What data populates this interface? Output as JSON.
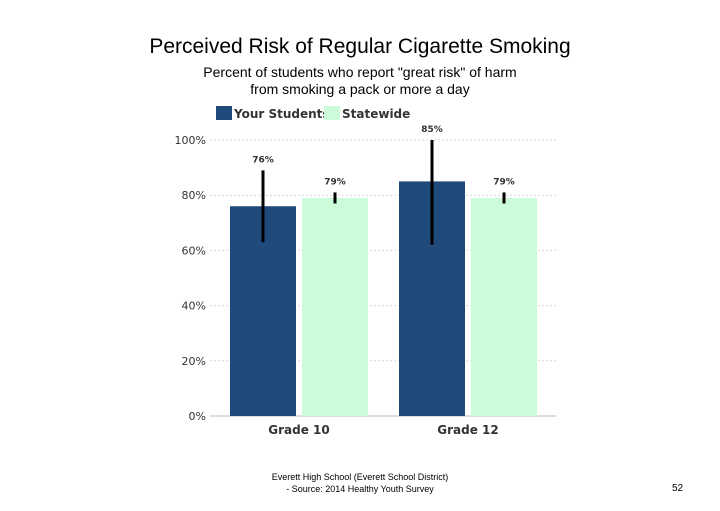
{
  "page": {
    "footer_line1": "Everett High School (Everett School District)",
    "footer_line2": "- Source: 2014 Healthy Youth Survey",
    "page_number": "52"
  },
  "chart_data": {
    "type": "bar",
    "title": "Perceived Risk of Regular Cigarette Smoking",
    "subtitle_line1": "Percent of students who report \"great risk\" of harm",
    "subtitle_line2": "from smoking a pack or more a day",
    "xlabel": "",
    "ylabel": "",
    "categories": [
      "Grade 10",
      "Grade 12"
    ],
    "ylim": [
      0,
      100
    ],
    "yticks": [
      0,
      20,
      40,
      60,
      80,
      100
    ],
    "ytick_labels": [
      "0%",
      "20%",
      "40%",
      "60%",
      "80%",
      "100%"
    ],
    "grid": true,
    "legend": "top-left",
    "series": [
      {
        "name": "Your Students",
        "color": "#1f4a7b",
        "values": [
          76,
          85
        ],
        "labels": [
          "76%",
          "85%"
        ],
        "error_low": [
          63,
          62
        ],
        "error_high": [
          89,
          100
        ]
      },
      {
        "name": "Statewide",
        "color": "#ccfbd9",
        "values": [
          79,
          79
        ],
        "labels": [
          "79%",
          "79%"
        ],
        "error_low": [
          77,
          77
        ],
        "error_high": [
          81,
          81
        ]
      }
    ]
  }
}
